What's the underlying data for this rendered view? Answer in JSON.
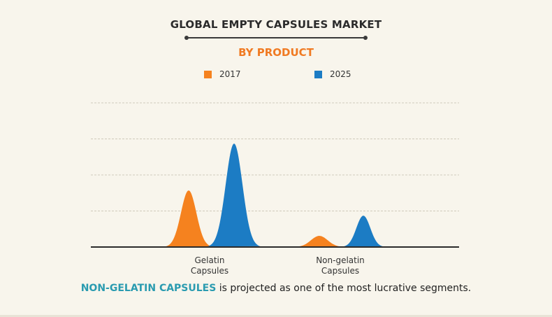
{
  "header": {
    "title": "GLOBAL EMPTY CAPSULES MARKET",
    "subtitle": "BY PRODUCT"
  },
  "colors": {
    "series_2017": "#f5821f",
    "series_2025": "#1c7cc4",
    "subtitle": "#f07a22",
    "highlight": "#2a9bb0",
    "grid": "#cfcabb",
    "axis": "#2b2b2b"
  },
  "chart_data": {
    "type": "area",
    "title": "GLOBAL EMPTY CAPSULES MARKET",
    "subtitle": "BY PRODUCT",
    "categories": [
      "Gelatin\nCapsules",
      "Non-gelatin\nCapsules"
    ],
    "category_lines": [
      [
        "Gelatin",
        "Capsules"
      ],
      [
        "Non-gelatin",
        "Capsules"
      ]
    ],
    "series": [
      {
        "name": "2017",
        "values": [
          1.57,
          0.31
        ]
      },
      {
        "name": "2025",
        "values": [
          2.87,
          0.87
        ]
      }
    ],
    "ylim": [
      0,
      4
    ],
    "grid": true,
    "legend": "top",
    "xlabel": "",
    "ylabel": ""
  },
  "footer": {
    "highlight": "NON-GELATIN CAPSULES",
    "text": " is projected as one of the most lucrative segments."
  }
}
